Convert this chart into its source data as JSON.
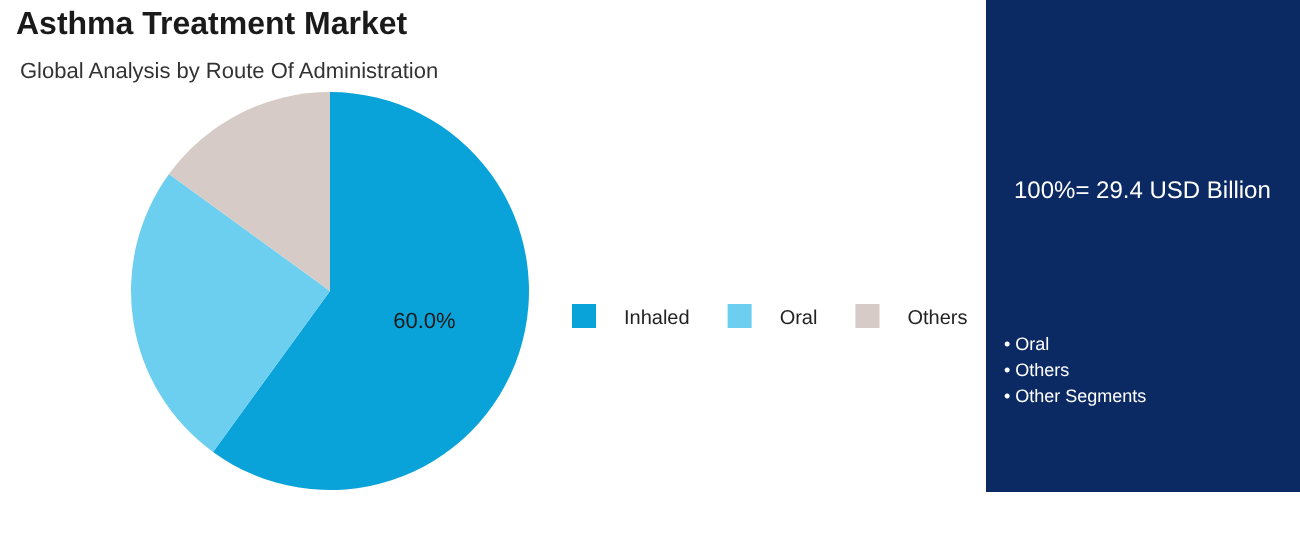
{
  "chart_data": {
    "type": "pie",
    "title": "Asthma Treatment Market",
    "subtitle": "Global Analysis by Route Of Administration",
    "categories": [
      "Inhaled",
      "Oral",
      "Others"
    ],
    "values": [
      60,
      25,
      15
    ],
    "colors": [
      "#0aa3d9",
      "#6dcff0",
      "#d6cbc6"
    ],
    "value_labels": [
      "60.0%",
      null,
      null
    ],
    "legend": "right",
    "annotations": [
      "100%= 29.4 USD Billion",
      "• Oral",
      "• Others",
      "• Other Segments"
    ]
  }
}
